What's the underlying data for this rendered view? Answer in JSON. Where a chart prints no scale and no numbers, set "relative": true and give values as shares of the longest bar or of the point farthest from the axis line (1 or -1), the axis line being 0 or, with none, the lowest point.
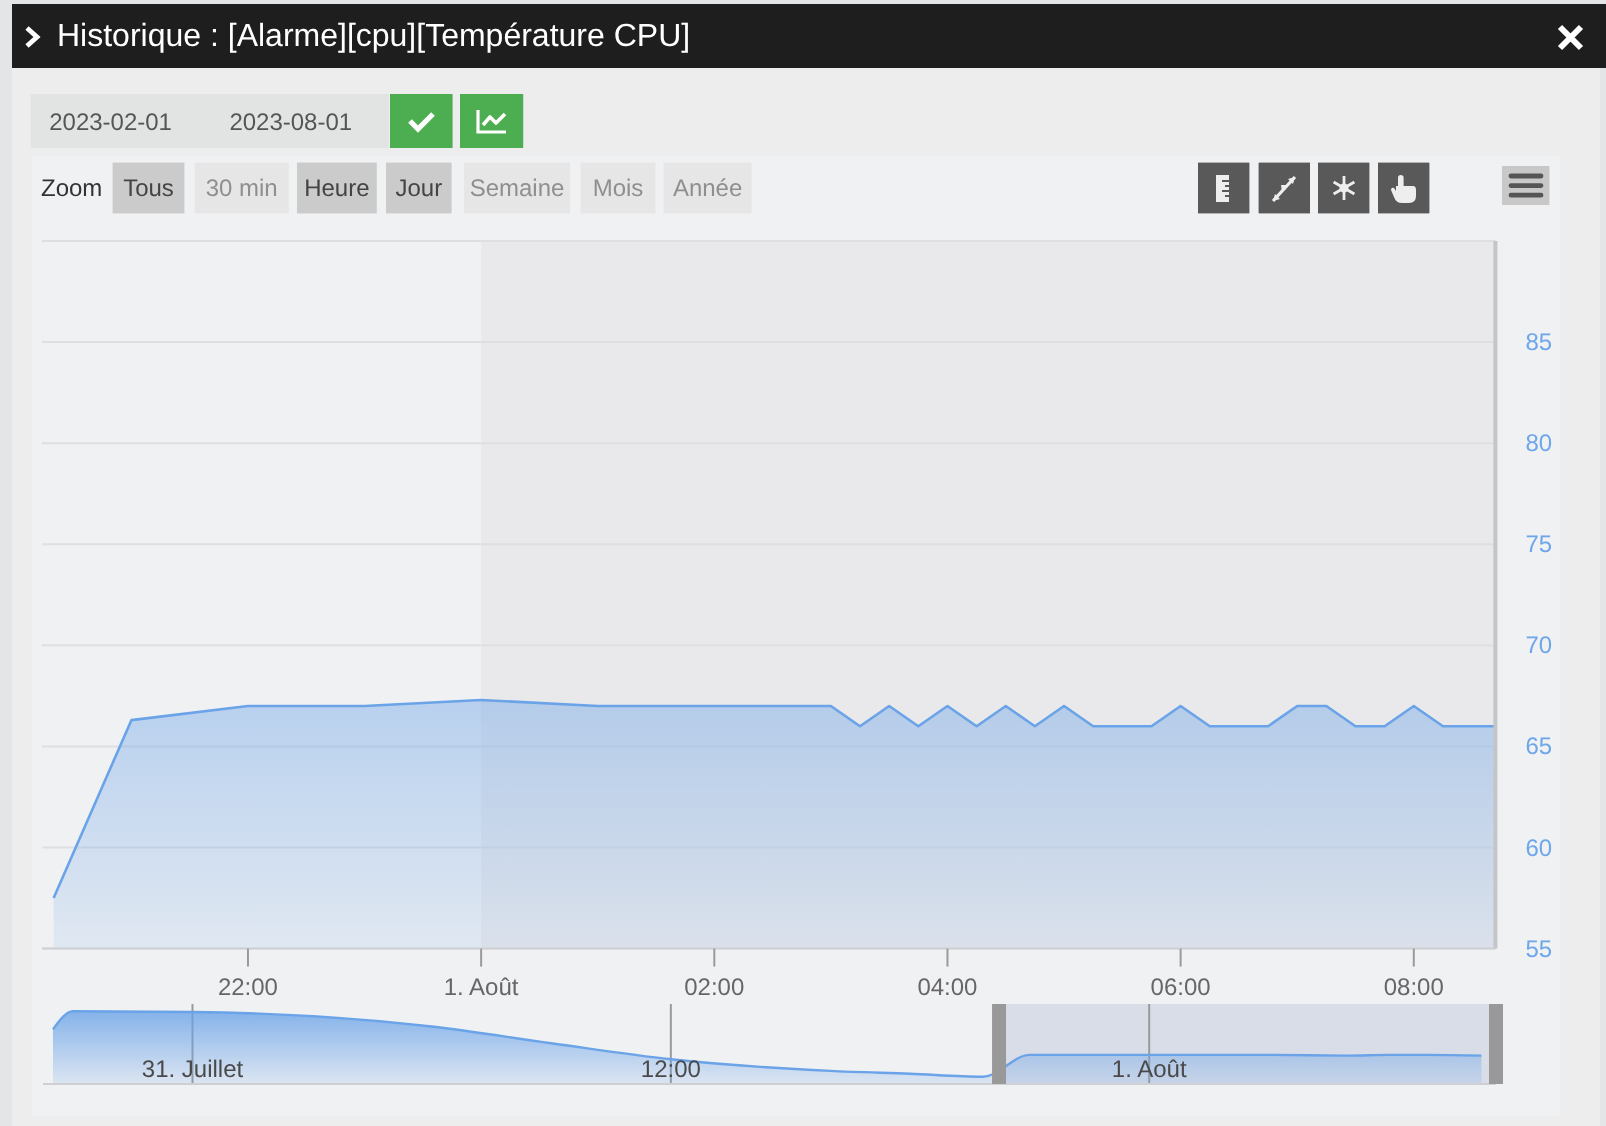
{
  "chart_data": [
    {
      "type": "area",
      "title": "Historique : [Alarme][cpu][Température CPU]",
      "annotations": [
        "2023-02-01",
        "2023-08-01",
        "Zoom",
        "Tous",
        "30 min",
        "Heure",
        "Jour",
        "Semaine",
        "Mois",
        "Année"
      ],
      "x": [
        "2023-07-31T20:20",
        "2023-07-31T21:00",
        "2023-07-31T22:00",
        "2023-07-31T23:00",
        "2023-08-01T00:00",
        "2023-08-01T01:00",
        "2023-08-01T02:00",
        "2023-08-01T03:00",
        "2023-08-01T03:15",
        "2023-08-01T03:30",
        "2023-08-01T03:45",
        "2023-08-01T04:00",
        "2023-08-01T04:15",
        "2023-08-01T04:30",
        "2023-08-01T04:45",
        "2023-08-01T05:00",
        "2023-08-01T05:15",
        "2023-08-01T05:30",
        "2023-08-01T05:45",
        "2023-08-01T06:00",
        "2023-08-01T06:15",
        "2023-08-01T06:30",
        "2023-08-01T06:45",
        "2023-08-01T07:00",
        "2023-08-01T07:15",
        "2023-08-01T07:30",
        "2023-08-01T07:45",
        "2023-08-01T08:00",
        "2023-08-01T08:15",
        "2023-08-01T08:30",
        "2023-08-01T08:42"
      ],
      "values": [
        57.5,
        66.3,
        67,
        67,
        67.3,
        67,
        67,
        67,
        66,
        67,
        66,
        67,
        66,
        67,
        66,
        67,
        66,
        66,
        66,
        67,
        66,
        66,
        66,
        67,
        67,
        66,
        66,
        67,
        66,
        66,
        66
      ],
      "color": "#6aa3e8",
      "xlim": [
        "2023-07-31T20:14",
        "2023-08-01T08:42"
      ],
      "xticks": [
        {
          "value": "2023-07-31T22:00",
          "label": "22:00"
        },
        {
          "value": "2023-08-01T00:00",
          "label": "1. Août"
        },
        {
          "value": "2023-08-01T02:00",
          "label": "02:00"
        },
        {
          "value": "2023-08-01T04:00",
          "label": "04:00"
        },
        {
          "value": "2023-08-01T06:00",
          "label": "06:00"
        },
        {
          "value": "2023-08-01T08:00",
          "label": "08:00"
        }
      ],
      "ylim": [
        55,
        90
      ],
      "yticks": [
        55,
        60,
        65,
        70,
        75,
        80,
        85,
        {
          "value": 90,
          "label": null
        }
      ],
      "grid": "y",
      "bands": [
        {
          "axis": "x",
          "from": "2023-08-01T00:00",
          "to": "2023-08-01T08:42",
          "color": "#e9e9eb"
        }
      ]
    },
    {
      "type": "area",
      "relative": true,
      "x": [
        "2023-07-30T20:30",
        "2023-07-30T21:00",
        "2023-07-31T00:00",
        "2023-07-31T06:00",
        "2023-07-31T09:00",
        "2023-07-31T12:00",
        "2023-07-31T16:00",
        "2023-07-31T18:00",
        "2023-07-31T19:50",
        "2023-07-31T21:00",
        "2023-08-01T03:00",
        "2023-08-01T05:00",
        "2023-08-01T06:00",
        "2023-08-01T07:00",
        "2023-08-01T08:20"
      ],
      "values": [
        0.75,
        1,
        0.99,
        0.79,
        0.56,
        0.34,
        0.18,
        0.14,
        0.1,
        0.4,
        0.4,
        0.39,
        0.4,
        0.4,
        0.39
      ],
      "color": "#6aa3e8",
      "xlim": [
        "2023-07-30T20:15",
        "2023-08-01T08:42"
      ],
      "xticks": [
        {
          "value": "2023-07-31T00:00",
          "label": "31. Juillet"
        },
        {
          "value": "2023-07-31T12:00",
          "label": "12:00"
        },
        {
          "value": "2023-08-01T00:00",
          "label": "1. Août"
        }
      ],
      "grid": "x",
      "bands": [
        {
          "axis": "x",
          "from": "2023-07-31T20:14",
          "to": "2023-08-01T08:42",
          "color": "#d8dde8"
        }
      ]
    }
  ]
}
